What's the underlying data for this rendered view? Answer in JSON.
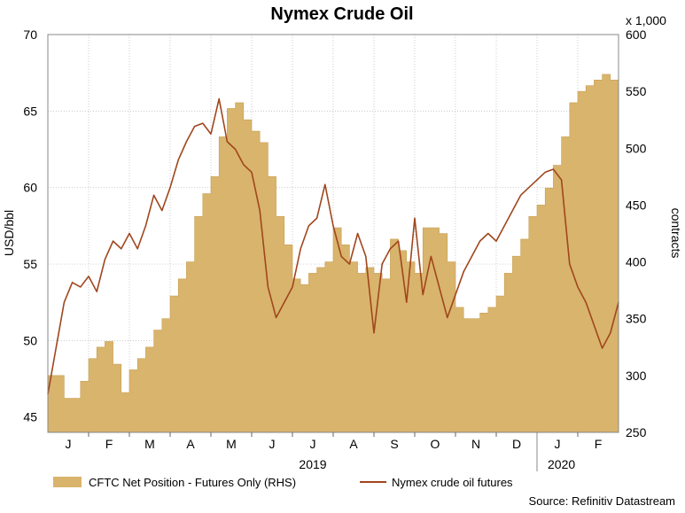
{
  "chart_data": {
    "type": "area+line",
    "title": "Nymex Crude Oil",
    "ylabel": "USD/bbl",
    "ylabel_right": "contracts",
    "right_multiplier": "x 1,000",
    "ylim": [
      44,
      70
    ],
    "ylim_right": [
      250,
      600
    ],
    "yticks_left": [
      45,
      50,
      55,
      60,
      65,
      70
    ],
    "yticks_right": [
      250,
      300,
      350,
      400,
      450,
      500,
      550,
      600
    ],
    "month_labels": [
      "J",
      "F",
      "M",
      "A",
      "M",
      "J",
      "J",
      "A",
      "S",
      "O",
      "N",
      "D",
      "J",
      "F"
    ],
    "year_labels": [
      "2019",
      "2020"
    ],
    "grid": true,
    "source": "Source: Refinitiv Datastream",
    "legend_position": "bottom",
    "colors": {
      "area_fill": "#d9b46c",
      "area_edge": "#c8a055",
      "line": "#a0461e",
      "grid": "#b8b8b8"
    },
    "series": [
      {
        "name": "CFTC Net Position - Futures Only (RHS)",
        "type": "area",
        "axis": "right",
        "x_weeks": [
          0,
          1,
          2,
          3,
          4,
          5,
          6,
          7,
          8,
          9,
          10,
          11,
          12,
          13,
          14,
          15,
          16,
          17,
          18,
          19,
          20,
          21,
          22,
          23,
          24,
          25,
          26,
          27,
          28,
          29,
          30,
          31,
          32,
          33,
          34,
          35,
          36,
          37,
          38,
          39,
          40,
          41,
          42,
          43,
          44,
          45,
          46,
          47,
          48,
          49,
          50,
          51,
          52,
          53,
          54,
          55,
          56,
          57,
          58,
          59,
          60,
          61,
          62,
          63,
          64,
          65,
          66,
          67,
          68,
          69,
          70
        ],
        "values": [
          300,
          300,
          280,
          280,
          295,
          315,
          325,
          330,
          310,
          285,
          305,
          315,
          325,
          340,
          350,
          370,
          385,
          400,
          440,
          460,
          475,
          510,
          535,
          540,
          525,
          515,
          505,
          475,
          440,
          415,
          385,
          380,
          390,
          395,
          400,
          430,
          415,
          400,
          390,
          395,
          390,
          385,
          420,
          410,
          400,
          390,
          430,
          430,
          425,
          400,
          360,
          350,
          350,
          355,
          360,
          370,
          390,
          405,
          420,
          440,
          450,
          465,
          485,
          510,
          540,
          550,
          555,
          560,
          565,
          560,
          540
        ]
      },
      {
        "name": "Nymex crude oil futures",
        "type": "line",
        "axis": "left",
        "x_weeks": [
          0,
          1,
          2,
          3,
          4,
          5,
          6,
          7,
          8,
          9,
          10,
          11,
          12,
          13,
          14,
          15,
          16,
          17,
          18,
          19,
          20,
          21,
          22,
          23,
          24,
          25,
          26,
          27,
          28,
          29,
          30,
          31,
          32,
          33,
          34,
          35,
          36,
          37,
          38,
          39,
          40,
          41,
          42,
          43,
          44,
          45,
          46,
          47,
          48,
          49,
          50,
          51,
          52,
          53,
          54,
          55,
          56,
          57,
          58,
          59,
          60,
          61,
          62,
          63,
          64,
          65,
          66,
          67,
          68,
          69,
          70
        ],
        "values": [
          46.5,
          49.5,
          52.5,
          53.8,
          53.5,
          54.2,
          53.2,
          55.3,
          56.5,
          56.0,
          57.0,
          56.0,
          57.5,
          59.5,
          58.5,
          60.0,
          61.8,
          63.0,
          64.0,
          64.2,
          63.5,
          65.8,
          63.0,
          62.5,
          61.5,
          61.0,
          58.5,
          53.5,
          51.5,
          52.5,
          53.5,
          56.0,
          57.5,
          58.0,
          60.2,
          57.5,
          55.5,
          55.0,
          57.0,
          55.5,
          50.5,
          55.0,
          56.0,
          56.5,
          52.5,
          58.0,
          53.0,
          55.5,
          53.5,
          51.5,
          53.0,
          54.5,
          55.5,
          56.5,
          57.0,
          56.5,
          57.5,
          58.5,
          59.5,
          60.0,
          60.5,
          61.0,
          61.2,
          60.5,
          55.0,
          53.5,
          52.5,
          51.0,
          49.5,
          50.5,
          52.5
        ]
      }
    ]
  }
}
